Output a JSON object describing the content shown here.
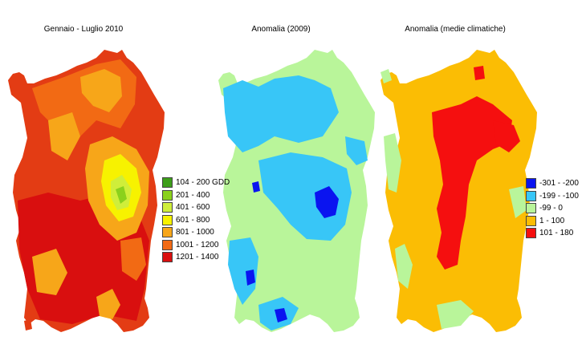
{
  "panels": [
    {
      "title": "Gennaio - Luglio 2010",
      "base_color": "#e33c14",
      "legend": [
        {
          "label": "104 - 200 GDD",
          "color": "#3d9e1a"
        },
        {
          "label": "201 - 400",
          "color": "#8ad11c"
        },
        {
          "label": "401 - 600",
          "color": "#cfee3a"
        },
        {
          "label": "601 - 800",
          "color": "#f7f200"
        },
        {
          "label": "801 - 1000",
          "color": "#f7a619"
        },
        {
          "label": "1001 - 1200",
          "color": "#f26a14"
        },
        {
          "label": "1201 - 1400",
          "color": "#d90f0f"
        }
      ]
    },
    {
      "title": "Anomalia (2009)",
      "base_color": "#b9f59a",
      "legend": []
    },
    {
      "title": "Anomalia (medie climatiche)",
      "base_color": "#fbbd04",
      "legend": [
        {
          "label": "-301 - -200",
          "color": "#0a14f0"
        },
        {
          "label": "-199 - -100",
          "color": "#38c6f7"
        },
        {
          "label": "-99 - 0",
          "color": "#b9f59a"
        },
        {
          "label": "1 - 100",
          "color": "#fbbd04"
        },
        {
          "label": "101 - 180",
          "color": "#f50f0f"
        }
      ]
    }
  ]
}
